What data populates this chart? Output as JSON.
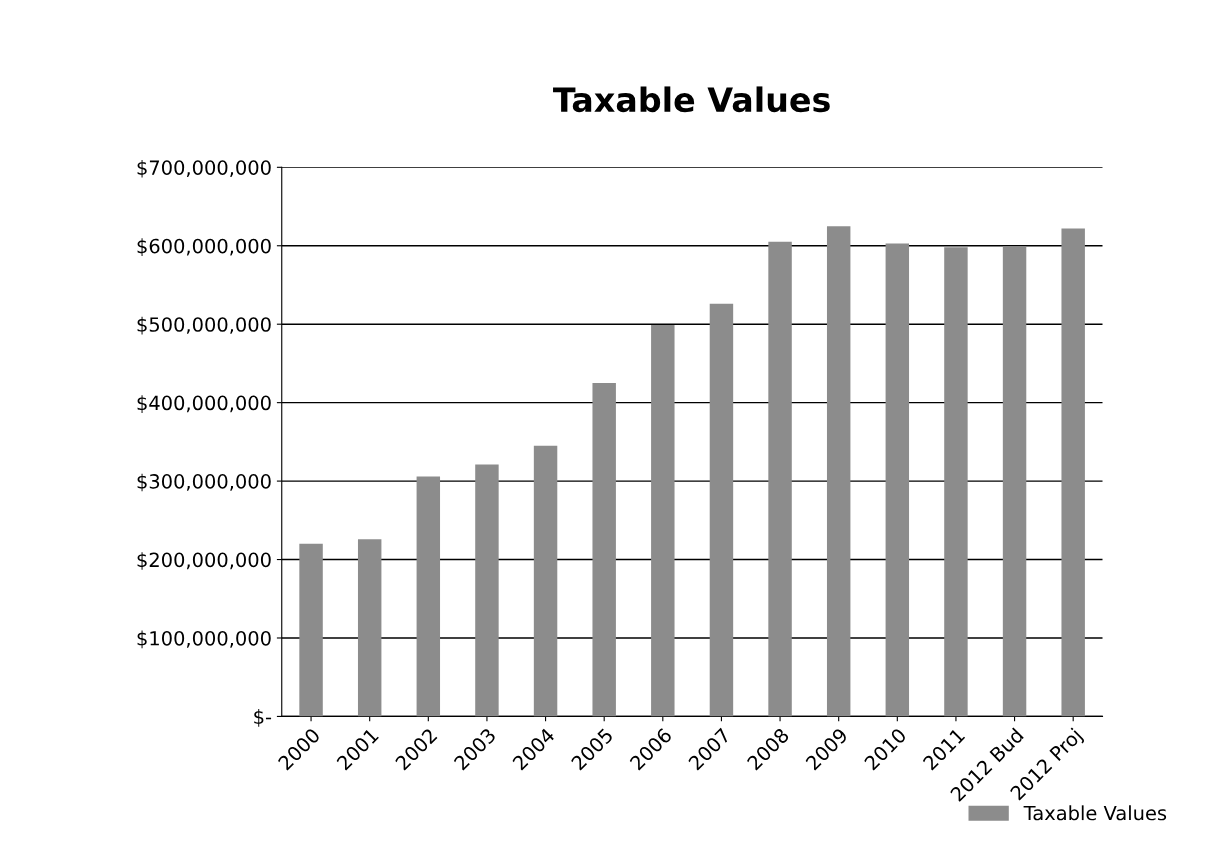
{
  "chart_data": {
    "type": "bar",
    "title": "Taxable Values",
    "categories": [
      "2000",
      "2001",
      "2002",
      "2003",
      "2004",
      "2005",
      "2006",
      "2007",
      "2008",
      "2009",
      "2010",
      "2011",
      "2012 Bud",
      "2012 Proj"
    ],
    "series": [
      {
        "name": "Taxable Values",
        "color": "#8c8c8c",
        "values": [
          220000000,
          226000000,
          306000000,
          321000000,
          345000000,
          425000000,
          499000000,
          526000000,
          605000000,
          625000000,
          603000000,
          598000000,
          599000000,
          622000000
        ]
      }
    ],
    "ylim": [
      0,
      700000000
    ],
    "yticks": [
      {
        "value": 0,
        "label": "$-"
      },
      {
        "value": 100000000,
        "label": "$100,000,000"
      },
      {
        "value": 200000000,
        "label": "$200,000,000"
      },
      {
        "value": 300000000,
        "label": "$300,000,000"
      },
      {
        "value": 400000000,
        "label": "$400,000,000"
      },
      {
        "value": 500000000,
        "label": "$500,000,000"
      },
      {
        "value": 600000000,
        "label": "$600,000,000"
      },
      {
        "value": 700000000,
        "label": "$700,000,000"
      }
    ],
    "grid": "y",
    "legend": "bottom right"
  }
}
